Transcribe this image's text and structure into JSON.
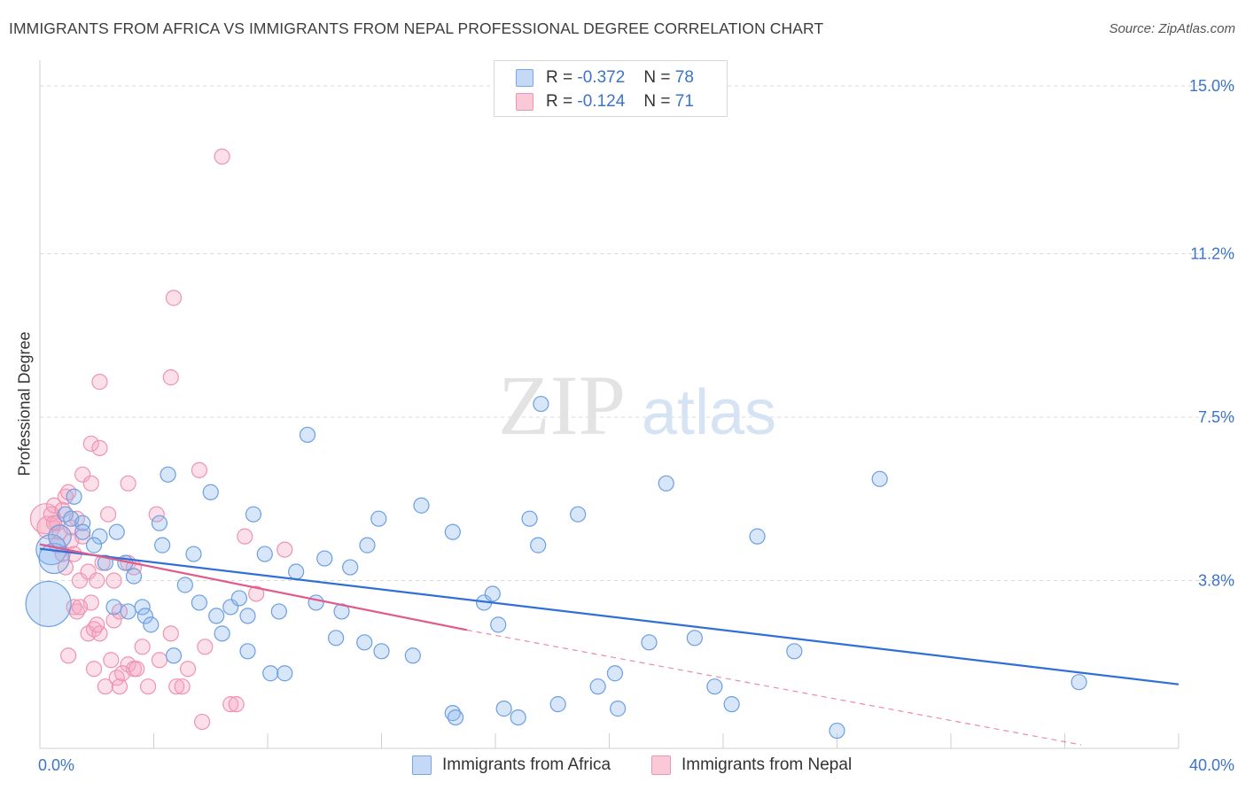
{
  "title": "IMMIGRANTS FROM AFRICA VS IMMIGRANTS FROM NEPAL PROFESSIONAL DEGREE CORRELATION CHART",
  "source": "Source: ZipAtlas.com",
  "watermark": {
    "zip": "ZIP",
    "atlas": "atlas"
  },
  "legend_top": {
    "rows": [
      {
        "r_label": "R =",
        "r_value": "-0.372",
        "n_label": "N =",
        "n_value": "78",
        "color": "#a9c8f0"
      },
      {
        "r_label": "R =",
        "r_value": "-0.124",
        "n_label": "N =",
        "n_value": "71",
        "color": "#f6b5c8"
      }
    ]
  },
  "legend_bottom": {
    "africa": "Immigrants from Africa",
    "nepal": "Immigrants from Nepal"
  },
  "chart_data": {
    "type": "scatter",
    "ylabel": "Professional Degree",
    "xlim": [
      0,
      40
    ],
    "ylim": [
      0,
      15
    ],
    "x_tick_labels": [
      "0.0%",
      "40.0%"
    ],
    "y_ticks": [
      3.8,
      7.5,
      11.2,
      15.0
    ],
    "y_tick_labels": [
      "3.8%",
      "7.5%",
      "11.2%",
      "15.0%"
    ],
    "grid": true,
    "colors": {
      "africa": "#6fa3e6",
      "nepal": "#f08fb0",
      "africa_line": "#2f6fd6",
      "nepal_line": "#e05a8c",
      "tick_label": "#3b74c8"
    },
    "series": [
      {
        "name": "Immigrants from Africa",
        "r": -0.372,
        "n": 78,
        "trend": {
          "x0": 0,
          "y0": 4.52,
          "x1": 40,
          "y1": 1.45
        },
        "points": [
          [
            0.3,
            3.27,
            3
          ],
          [
            0.4,
            4.5,
            2
          ],
          [
            0.5,
            4.3,
            2
          ],
          [
            0.7,
            4.8,
            1.5
          ],
          [
            0.9,
            5.3,
            1
          ],
          [
            1.1,
            5.2,
            1
          ],
          [
            1.5,
            5.1,
            1
          ],
          [
            1.2,
            5.7,
            1
          ],
          [
            1.5,
            4.9,
            1
          ],
          [
            2.1,
            4.8,
            1
          ],
          [
            1.9,
            4.6,
            1
          ],
          [
            2.3,
            4.2,
            1
          ],
          [
            2.7,
            4.9,
            1
          ],
          [
            2.6,
            3.2,
            1
          ],
          [
            3.1,
            3.1,
            1
          ],
          [
            3.0,
            4.2,
            1
          ],
          [
            3.3,
            3.9,
            1
          ],
          [
            3.6,
            3.2,
            1
          ],
          [
            3.7,
            3.0,
            1
          ],
          [
            3.9,
            2.8,
            1
          ],
          [
            4.2,
            5.1,
            1
          ],
          [
            4.3,
            4.6,
            1
          ],
          [
            4.5,
            6.2,
            1
          ],
          [
            4.7,
            2.1,
            1
          ],
          [
            5.1,
            3.7,
            1
          ],
          [
            5.4,
            4.4,
            1
          ],
          [
            5.6,
            3.3,
            1
          ],
          [
            6.0,
            5.8,
            1
          ],
          [
            6.2,
            3.0,
            1
          ],
          [
            6.4,
            2.6,
            1
          ],
          [
            6.7,
            3.2,
            1
          ],
          [
            7.0,
            3.4,
            1
          ],
          [
            7.3,
            3.0,
            1
          ],
          [
            7.5,
            5.3,
            1
          ],
          [
            7.9,
            4.4,
            1
          ],
          [
            8.1,
            1.7,
            1
          ],
          [
            8.4,
            3.1,
            1
          ],
          [
            8.6,
            1.7,
            1
          ],
          [
            9.0,
            4.0,
            1
          ],
          [
            9.4,
            7.1,
            1
          ],
          [
            9.7,
            3.3,
            1
          ],
          [
            10.0,
            4.3,
            1
          ],
          [
            10.4,
            2.5,
            1
          ],
          [
            10.6,
            3.1,
            1
          ],
          [
            10.9,
            4.1,
            1
          ],
          [
            11.4,
            2.4,
            1
          ],
          [
            11.5,
            4.6,
            1
          ],
          [
            11.9,
            5.2,
            1
          ],
          [
            12.0,
            2.2,
            1
          ],
          [
            13.1,
            2.1,
            1
          ],
          [
            13.4,
            5.5,
            1
          ],
          [
            14.5,
            4.9,
            1
          ],
          [
            14.5,
            0.8,
            1
          ],
          [
            14.6,
            0.7,
            1
          ],
          [
            15.6,
            3.3,
            1
          ],
          [
            15.9,
            3.5,
            1
          ],
          [
            16.1,
            2.8,
            1
          ],
          [
            16.3,
            0.9,
            1
          ],
          [
            16.8,
            0.7,
            1
          ],
          [
            17.2,
            5.2,
            1
          ],
          [
            17.5,
            4.6,
            1
          ],
          [
            17.6,
            7.8,
            1
          ],
          [
            18.2,
            1.0,
            1
          ],
          [
            18.9,
            5.3,
            1
          ],
          [
            19.6,
            1.4,
            1
          ],
          [
            20.2,
            1.7,
            1
          ],
          [
            20.3,
            0.9,
            1
          ],
          [
            21.4,
            2.4,
            1
          ],
          [
            22.0,
            6.0,
            1
          ],
          [
            23.0,
            2.5,
            1
          ],
          [
            23.7,
            1.4,
            1
          ],
          [
            24.3,
            1.0,
            1
          ],
          [
            25.2,
            4.8,
            1
          ],
          [
            26.5,
            2.2,
            1
          ],
          [
            28.0,
            0.4,
            1
          ],
          [
            29.5,
            6.1,
            1
          ],
          [
            36.5,
            1.5,
            1
          ],
          [
            7.3,
            2.2,
            1
          ]
        ]
      },
      {
        "name": "Immigrants from Nepal",
        "r": -0.124,
        "n": 71,
        "trend": {
          "x0": 0,
          "y0": 4.62,
          "x1": 15,
          "y1": 2.68
        },
        "trend_dashed": {
          "x0": 15,
          "y0": 2.68,
          "x1": 40,
          "y1": 0.0
        },
        "points": [
          [
            0.2,
            5.2,
            2
          ],
          [
            0.3,
            5.0,
            1.5
          ],
          [
            0.4,
            5.3,
            1
          ],
          [
            0.5,
            5.5,
            1
          ],
          [
            0.6,
            5.1,
            1
          ],
          [
            0.7,
            4.9,
            1
          ],
          [
            0.8,
            5.4,
            1
          ],
          [
            0.6,
            4.6,
            1
          ],
          [
            0.9,
            5.7,
            1
          ],
          [
            1.0,
            5.8,
            1
          ],
          [
            0.9,
            4.1,
            1
          ],
          [
            1.1,
            4.7,
            1
          ],
          [
            1.2,
            4.4,
            1
          ],
          [
            1.3,
            5.2,
            1
          ],
          [
            1.0,
            2.1,
            1
          ],
          [
            1.2,
            3.2,
            1
          ],
          [
            1.3,
            3.1,
            1
          ],
          [
            1.4,
            3.8,
            1
          ],
          [
            1.5,
            4.8,
            1
          ],
          [
            1.5,
            6.2,
            1
          ],
          [
            1.7,
            4.0,
            1
          ],
          [
            1.7,
            2.6,
            1
          ],
          [
            1.8,
            3.3,
            1
          ],
          [
            1.8,
            6.9,
            1
          ],
          [
            1.8,
            6.0,
            1
          ],
          [
            1.9,
            2.7,
            1
          ],
          [
            1.9,
            1.8,
            1
          ],
          [
            2.0,
            3.8,
            1
          ],
          [
            2.1,
            2.6,
            1
          ],
          [
            2.2,
            4.2,
            1
          ],
          [
            2.1,
            6.8,
            1
          ],
          [
            2.3,
            1.4,
            1
          ],
          [
            2.4,
            5.3,
            1
          ],
          [
            2.5,
            2.0,
            1
          ],
          [
            2.6,
            3.8,
            1
          ],
          [
            2.6,
            2.9,
            1
          ],
          [
            2.7,
            1.6,
            1
          ],
          [
            2.8,
            1.4,
            1
          ],
          [
            2.8,
            3.1,
            1
          ],
          [
            2.1,
            8.3,
            1
          ],
          [
            3.1,
            4.2,
            1
          ],
          [
            3.1,
            1.9,
            1
          ],
          [
            3.3,
            1.8,
            1
          ],
          [
            3.1,
            6.0,
            1
          ],
          [
            3.4,
            1.8,
            1
          ],
          [
            3.8,
            1.4,
            1
          ],
          [
            4.2,
            2.0,
            1
          ],
          [
            4.1,
            5.3,
            1
          ],
          [
            4.6,
            2.6,
            1
          ],
          [
            4.7,
            10.2,
            1
          ],
          [
            4.6,
            8.4,
            1
          ],
          [
            4.8,
            1.4,
            1
          ],
          [
            5.0,
            1.4,
            1
          ],
          [
            5.2,
            1.8,
            1
          ],
          [
            5.6,
            6.3,
            1
          ],
          [
            5.7,
            0.6,
            1
          ],
          [
            5.8,
            2.3,
            1
          ],
          [
            6.4,
            13.4,
            1
          ],
          [
            6.7,
            1.0,
            1
          ],
          [
            6.9,
            1.0,
            1
          ],
          [
            7.2,
            4.8,
            1
          ],
          [
            7.6,
            3.5,
            1
          ],
          [
            8.6,
            4.5,
            1
          ],
          [
            3.3,
            4.1,
            1
          ],
          [
            0.5,
            5.1,
            1
          ],
          [
            0.8,
            4.4,
            1
          ],
          [
            1.1,
            5.0,
            1
          ],
          [
            1.4,
            3.2,
            1
          ],
          [
            2.0,
            2.8,
            1
          ],
          [
            2.9,
            1.7,
            1
          ],
          [
            3.6,
            2.3,
            1
          ]
        ]
      }
    ]
  }
}
